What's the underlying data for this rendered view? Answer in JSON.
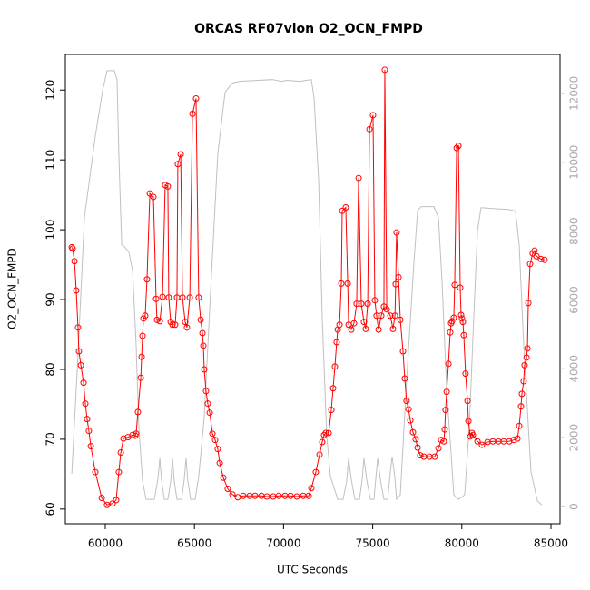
{
  "chart_data": {
    "type": "line",
    "title": "ORCAS RF07vlon O2_OCN_FMPD",
    "x_label": "UTC Seconds",
    "y_label": "O2_OCN_FMPD",
    "xlim": [
      57760,
      85510
    ],
    "xticks": [
      60000,
      65000,
      70000,
      75000,
      80000,
      85000
    ],
    "ylim": [
      57.9,
      125.1
    ],
    "yticks": [
      60,
      70,
      80,
      90,
      100,
      110,
      120
    ],
    "y2lim": [
      -500,
      13130
    ],
    "y2ticks": [
      0,
      2000,
      4000,
      6000,
      8000,
      10000,
      12000
    ],
    "grid": false,
    "series": [
      {
        "color": "#ff0000",
        "markers": true,
        "axis": "y",
        "x": [
          58120,
          58170,
          58270,
          58370,
          58470,
          58520,
          58630,
          58780,
          58880,
          58980,
          59080,
          59190,
          59440,
          59800,
          60100,
          60410,
          60610,
          60760,
          60870,
          61020,
          61270,
          61530,
          61680,
          61730,
          61830,
          61990,
          62040,
          62090,
          62140,
          62240,
          62340,
          62500,
          62700,
          62850,
          62900,
          63060,
          63210,
          63360,
          63510,
          63560,
          63670,
          63770,
          63920,
          64020,
          64070,
          64230,
          64330,
          64480,
          64580,
          64740,
          64890,
          65090,
          65240,
          65350,
          65450,
          65500,
          65550,
          65650,
          65750,
          65860,
          66010,
          66160,
          66310,
          66420,
          66620,
          66870,
          67130,
          67430,
          67740,
          68100,
          68400,
          68760,
          69060,
          69420,
          69730,
          70080,
          70390,
          70740,
          71100,
          71410,
          71560,
          71810,
          72020,
          72170,
          72270,
          72370,
          72530,
          72680,
          72780,
          72880,
          72980,
          73040,
          73140,
          73240,
          73290,
          73490,
          73600,
          73650,
          73800,
          73950,
          74100,
          74210,
          74360,
          74510,
          74610,
          74720,
          74820,
          75020,
          75120,
          75220,
          75330,
          75480,
          75630,
          75680,
          75790,
          75990,
          76140,
          76250,
          76290,
          76340,
          76450,
          76550,
          76700,
          76800,
          76900,
          77010,
          77110,
          77260,
          77410,
          77520,
          77670,
          77870,
          78180,
          78480,
          78690,
          78840,
          78990,
          79040,
          79090,
          79150,
          79250,
          79350,
          79400,
          79450,
          79550,
          79600,
          79710,
          79810,
          79910,
          79960,
          80010,
          80060,
          80110,
          80210,
          80320,
          80370,
          80470,
          80570,
          80620,
          80880,
          81130,
          81440,
          81740,
          82050,
          82350,
          82660,
          82910,
          83120,
          83220,
          83320,
          83370,
          83470,
          83520,
          83630,
          83680,
          83730,
          83830,
          83980,
          84080,
          84190,
          84440,
          84640
        ],
        "values": [
          97.5,
          97.3,
          95.5,
          91.3,
          86.0,
          82.6,
          80.6,
          78.1,
          75.1,
          72.9,
          71.2,
          69.0,
          65.3,
          61.6,
          60.6,
          60.8,
          61.3,
          65.3,
          68.1,
          70.1,
          70.3,
          70.6,
          70.5,
          70.8,
          73.9,
          78.8,
          81.8,
          84.8,
          87.3,
          87.7,
          92.9,
          105.2,
          104.7,
          90.1,
          87.1,
          86.9,
          90.4,
          106.4,
          106.2,
          90.3,
          86.8,
          86.4,
          86.4,
          90.3,
          109.4,
          110.8,
          90.3,
          86.8,
          86.0,
          90.3,
          116.6,
          118.8,
          90.3,
          87.1,
          85.2,
          83.4,
          80.0,
          76.9,
          75.1,
          73.8,
          70.8,
          69.9,
          68.6,
          66.6,
          64.5,
          62.9,
          62.1,
          61.7,
          61.9,
          61.9,
          61.9,
          61.9,
          61.8,
          61.8,
          61.9,
          61.9,
          61.9,
          61.8,
          61.9,
          61.9,
          63.0,
          65.3,
          67.8,
          69.6,
          70.6,
          70.9,
          70.9,
          74.2,
          77.3,
          80.4,
          83.9,
          85.7,
          86.4,
          92.3,
          102.7,
          103.2,
          92.3,
          86.4,
          85.7,
          86.6,
          89.4,
          107.4,
          89.4,
          86.8,
          85.8,
          89.4,
          114.4,
          116.4,
          89.9,
          87.7,
          85.7,
          87.7,
          89.0,
          122.9,
          88.6,
          87.7,
          85.8,
          87.7,
          92.2,
          99.6,
          93.2,
          87.1,
          82.6,
          78.7,
          75.5,
          74.3,
          72.7,
          71.0,
          70.0,
          68.8,
          67.7,
          67.5,
          67.5,
          67.5,
          68.7,
          69.9,
          69.7,
          71.4,
          74.2,
          76.8,
          80.8,
          85.3,
          86.6,
          86.9,
          87.4,
          92.1,
          111.7,
          112.0,
          91.7,
          87.8,
          87.3,
          86.8,
          84.9,
          79.4,
          75.5,
          72.6,
          70.4,
          70.9,
          70.6,
          69.7,
          69.2,
          69.6,
          69.7,
          69.7,
          69.7,
          69.7,
          69.9,
          70.1,
          71.9,
          74.7,
          76.5,
          78.3,
          80.6,
          81.7,
          83.0,
          89.5,
          95.1,
          96.6,
          97.0,
          96.2,
          95.8,
          95.7
        ]
      },
      {
        "color": "#c0c0c0",
        "markers": false,
        "axis": "y2",
        "x": [
          58120,
          58420,
          58830,
          59440,
          59850,
          60100,
          60510,
          60660,
          60760,
          60920,
          61070,
          61320,
          61530,
          61730,
          61880,
          62090,
          62290,
          62550,
          62750,
          62950,
          63060,
          63160,
          63310,
          63510,
          63670,
          63770,
          63870,
          64020,
          64280,
          64430,
          64530,
          64630,
          64790,
          65040,
          65240,
          65550,
          65910,
          66310,
          66720,
          67130,
          67540,
          69370,
          69880,
          70180,
          70900,
          71560,
          71710,
          71970,
          72170,
          72420,
          72630,
          73040,
          73340,
          73540,
          73650,
          73800,
          74000,
          74260,
          74410,
          74510,
          74660,
          74870,
          75070,
          75170,
          75280,
          75430,
          75630,
          75840,
          75990,
          76090,
          76240,
          76340,
          76550,
          76900,
          77310,
          77520,
          77720,
          78430,
          78690,
          78890,
          79150,
          79400,
          79550,
          79810,
          80160,
          80420,
          80670,
          80880,
          81080,
          81840,
          82610,
          83010,
          83220,
          83470,
          83880,
          84240,
          84490
        ],
        "values": [
          950,
          3900,
          8390,
          10760,
          12080,
          12660,
          12660,
          12400,
          10240,
          7600,
          7550,
          7390,
          6860,
          4700,
          2320,
          740,
          210,
          210,
          210,
          790,
          1400,
          740,
          210,
          210,
          740,
          1400,
          740,
          210,
          210,
          790,
          1400,
          740,
          210,
          210,
          870,
          2590,
          6280,
          10240,
          12030,
          12300,
          12350,
          12400,
          12350,
          12380,
          12350,
          12400,
          11870,
          9450,
          5490,
          2060,
          870,
          210,
          210,
          740,
          1400,
          790,
          210,
          210,
          790,
          1400,
          790,
          210,
          210,
          790,
          1400,
          790,
          210,
          210,
          1000,
          1450,
          870,
          210,
          340,
          3640,
          7070,
          8600,
          8710,
          8710,
          8390,
          6540,
          3380,
          1530,
          340,
          210,
          340,
          2320,
          5490,
          8020,
          8680,
          8650,
          8630,
          8580,
          7600,
          4700,
          1000,
          160,
          50
        ]
      }
    ]
  }
}
